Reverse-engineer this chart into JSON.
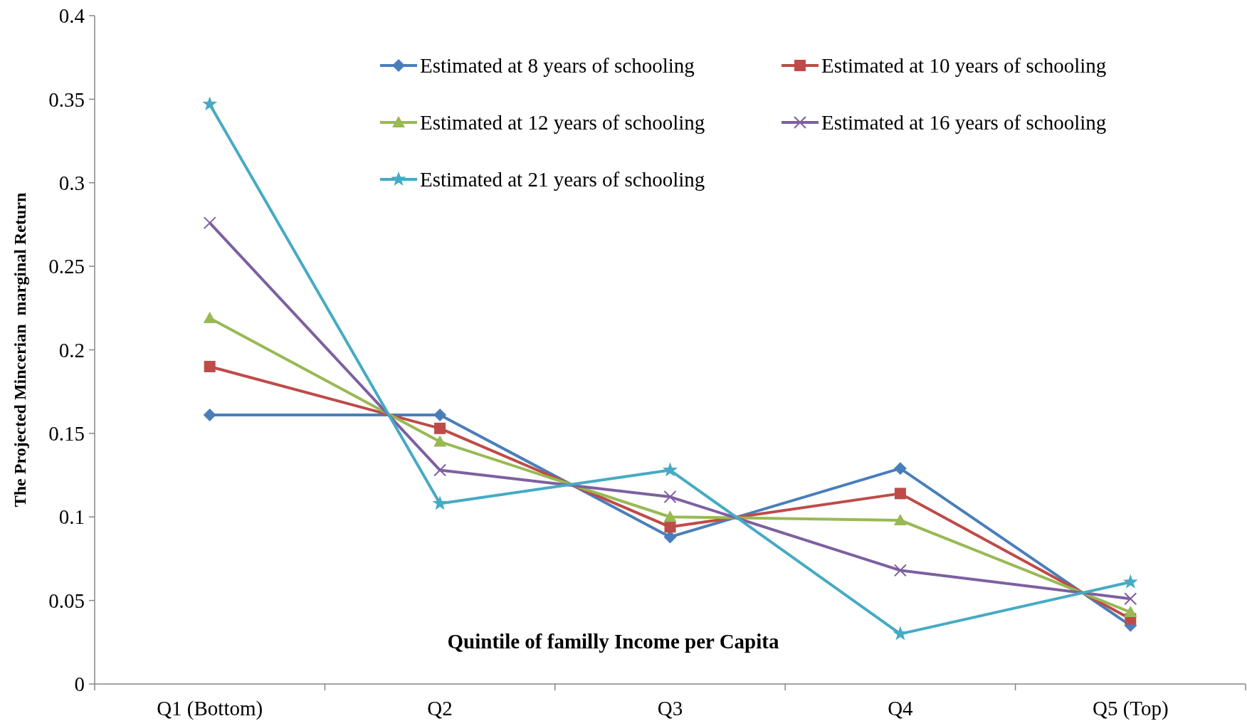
{
  "chart_data": {
    "type": "line",
    "xlabel": "Quintile of familly Income per Capita",
    "ylabel": "The Projected Mincerian  marginal Return",
    "categories": [
      "Q1 (Bottom)",
      "Q2",
      "Q3",
      "Q4",
      "Q5 (Top)"
    ],
    "ylim": [
      0,
      0.4
    ],
    "yticks": [
      0,
      0.05,
      0.1,
      0.15,
      0.2,
      0.25,
      0.3,
      0.35,
      0.4
    ],
    "grid": false,
    "legend": "top",
    "line_style": "solid",
    "series": [
      {
        "name": "Estimated at 8 years of schooling",
        "color": "#4a7ebb",
        "marker": "diamond",
        "values": [
          0.161,
          0.161,
          0.088,
          0.129,
          0.035
        ]
      },
      {
        "name": "Estimated at 10 years of schooling",
        "color": "#be4b48",
        "marker": "square",
        "values": [
          0.19,
          0.153,
          0.094,
          0.114,
          0.039
        ]
      },
      {
        "name": "Estimated at 12 years of schooling",
        "color": "#98b954",
        "marker": "triangle",
        "values": [
          0.219,
          0.145,
          0.1,
          0.098,
          0.043
        ]
      },
      {
        "name": "Estimated at 16 years of schooling",
        "color": "#7d60a0",
        "marker": "cross",
        "values": [
          0.276,
          0.128,
          0.112,
          0.068,
          0.051
        ]
      },
      {
        "name": "Estimated at 21 years of schooling",
        "color": "#46aac5",
        "marker": "star",
        "values": [
          0.347,
          0.108,
          0.128,
          0.03,
          0.061
        ]
      }
    ]
  }
}
